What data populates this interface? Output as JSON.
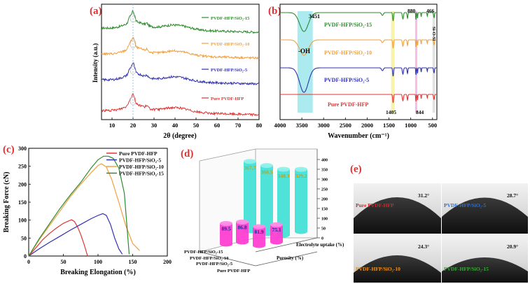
{
  "chart_data": [
    {
      "id": "a",
      "type": "line",
      "panel_label": "(a)",
      "xlabel": "2θ (degree)",
      "ylabel": "Intensity (a.u.)",
      "xlim": [
        5,
        80
      ],
      "xticks": [
        10,
        20,
        30,
        40,
        50,
        60,
        70,
        80
      ],
      "series": [
        {
          "name": "PVDF-HFP/SiO₂-15",
          "color": "#2e8b2e",
          "offset": 3.0
        },
        {
          "name": "PVDF-HFP/SiO₂-10",
          "color": "#f0a040",
          "offset": 2.0
        },
        {
          "name": "PVDF-HFP/SiO₂-5",
          "color": "#3030b0",
          "offset": 1.0
        },
        {
          "name": "Pure PVDF-HFP",
          "color": "#e03535",
          "offset": 0.0
        }
      ],
      "peaks_deg": [
        18.4,
        20.0,
        26.6
      ],
      "reference_line_deg": 20.0
    },
    {
      "id": "b",
      "type": "line",
      "panel_label": "(b)",
      "xlabel": "Wavenumber (cm⁻¹)",
      "ylabel": "",
      "xlim": [
        4000,
        400
      ],
      "xticks": [
        4000,
        3500,
        3000,
        2500,
        2000,
        1500,
        1000,
        500
      ],
      "series": [
        {
          "name": "PVDF-HFP/SiO₂-15",
          "color": "#2e8b2e"
        },
        {
          "name": "PVDF-HFP/SiO₂-10",
          "color": "#f0a040"
        },
        {
          "name": "PVDF-HFP/SiO₂-5",
          "color": "#3030b0"
        },
        {
          "name": "Pure PVDF-HFP",
          "color": "#e03535"
        }
      ],
      "annotations": [
        "3451",
        "-OH",
        "880",
        "466",
        "Si-O-Si",
        "1405",
        "844"
      ],
      "bands": [
        {
          "from": 3600,
          "to": 3250,
          "color": "#8fe3e8"
        },
        {
          "from": 1450,
          "to": 1370,
          "color": "#f6f08a"
        },
        {
          "from": 900,
          "to": 850,
          "color": "#f0a8e0"
        },
        {
          "from": 500,
          "to": 440,
          "color": "#d8d8d8"
        }
      ]
    },
    {
      "id": "c",
      "type": "line",
      "panel_label": "(c)",
      "xlabel": "Breaking Elongation (%)",
      "ylabel": "Breaking Force (cN)",
      "xlim": [
        0,
        200
      ],
      "ylim": [
        0,
        300
      ],
      "xticks": [
        0,
        50,
        100,
        150,
        200
      ],
      "yticks": [
        0,
        50,
        100,
        150,
        200,
        250,
        300
      ],
      "legend_position": "top-right",
      "series": [
        {
          "name": "Pure PVDF-HFP",
          "color": "#e03535",
          "x": [
            0,
            10,
            20,
            30,
            40,
            50,
            58,
            62,
            66,
            70,
            75,
            80,
            85
          ],
          "y": [
            0,
            22,
            45,
            63,
            78,
            91,
            98,
            101,
            96,
            83,
            60,
            32,
            0
          ]
        },
        {
          "name": "PVDF-HFP/SiO₂-5",
          "color": "#3030b0",
          "x": [
            0,
            15,
            30,
            45,
            60,
            75,
            90,
            100,
            107,
            112,
            118,
            124,
            130,
            135
          ],
          "y": [
            0,
            20,
            38,
            55,
            72,
            88,
            104,
            113,
            118,
            113,
            88,
            50,
            20,
            5
          ]
        },
        {
          "name": "PVDF-HFP/SiO₂-10",
          "color": "#f0a040",
          "x": [
            0,
            15,
            30,
            45,
            60,
            75,
            90,
            100,
            105,
            112,
            120,
            130,
            140,
            150,
            160
          ],
          "y": [
            0,
            45,
            85,
            125,
            165,
            200,
            232,
            252,
            257,
            248,
            212,
            150,
            85,
            35,
            15
          ]
        },
        {
          "name": "PVDF-HFP/SiO₂-15",
          "color": "#2e8b2e",
          "x": [
            0,
            15,
            30,
            45,
            60,
            75,
            90,
            100,
            108,
            115,
            122,
            130,
            138,
            145
          ],
          "y": [
            0,
            48,
            90,
            132,
            170,
            205,
            245,
            268,
            278,
            278,
            272,
            245,
            175,
            5
          ]
        }
      ]
    },
    {
      "id": "d",
      "type": "bar",
      "panel_label": "(d)",
      "categories": [
        "PVDF-HFP/SiO₂-15",
        "PVDF-HFP/SiO₂-10",
        "PVDF-HFP/SiO₂-5",
        "Pure PVDF-HFP"
      ],
      "series": [
        {
          "name": "Porosity (%)",
          "color": "#ff3ad0",
          "values": [
            89.5,
            86.8,
            81.9,
            75.1
          ]
        },
        {
          "name": "Electrolyte uptake (%)",
          "color": "#3fe0d6",
          "values": [
            367.7,
            360.5,
            348.3,
            329.2
          ]
        }
      ],
      "zlim": [
        0,
        400
      ],
      "zticks": [
        0,
        50,
        100,
        150,
        200,
        250,
        300,
        350,
        400
      ],
      "value_labels": [
        "89.5",
        "86.8",
        "81.9",
        "75.1",
        "367.7",
        "360.5",
        "348.3",
        "329.2"
      ]
    },
    {
      "id": "e",
      "type": "image",
      "panel_label": "(e)",
      "photos": [
        {
          "name": "Pure PVDF-HFP",
          "angle": "31.2°",
          "label_color": "#e02020"
        },
        {
          "name": "PVDF-HFP/SiO₂-5",
          "angle": "28.7°",
          "label_color": "#2a6fd8"
        },
        {
          "name": "PVDF-HFP/SiO₂-10",
          "angle": "24.3°",
          "label_color": "#f09018"
        },
        {
          "name": "PVDF-HFP/SiO₂-15",
          "angle": "20.9°",
          "label_color": "#3aa83a"
        }
      ]
    }
  ]
}
